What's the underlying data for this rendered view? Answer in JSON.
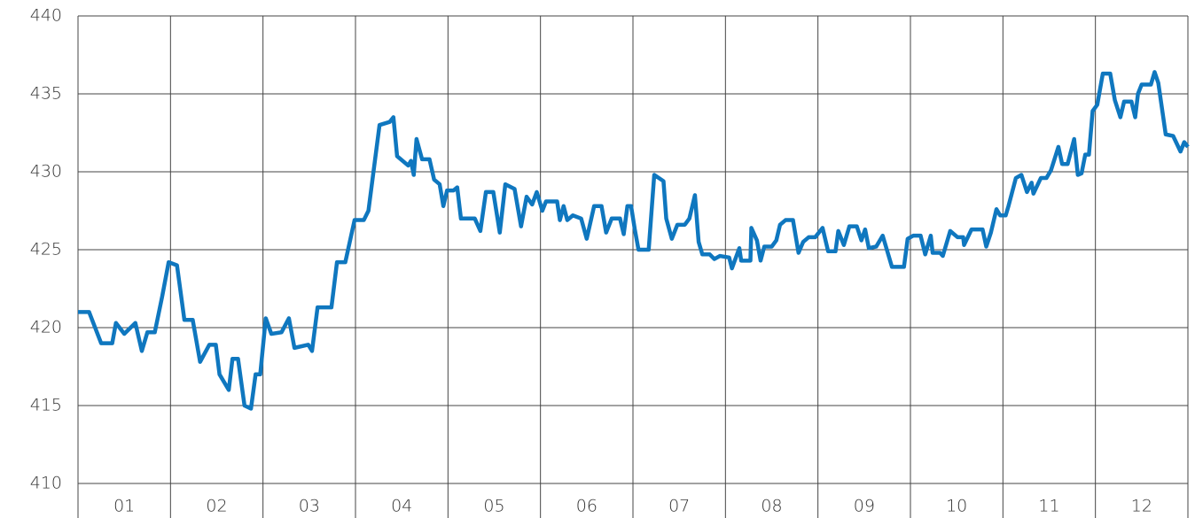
{
  "chart_data": {
    "type": "line",
    "xlim": [
      0,
      12
    ],
    "xticks": [
      {
        "value": 0.5,
        "label": "01"
      },
      {
        "value": 1.5,
        "label": "02"
      },
      {
        "value": 2.5,
        "label": "03"
      },
      {
        "value": 3.5,
        "label": "04"
      },
      {
        "value": 4.5,
        "label": "05"
      },
      {
        "value": 5.5,
        "label": "06"
      },
      {
        "value": 6.5,
        "label": "07"
      },
      {
        "value": 7.5,
        "label": "08"
      },
      {
        "value": 8.5,
        "label": "09"
      },
      {
        "value": 9.5,
        "label": "10"
      },
      {
        "value": 10.5,
        "label": "11"
      },
      {
        "value": 11.5,
        "label": "12"
      }
    ],
    "ylim": [
      410,
      440
    ],
    "yticks": [
      410,
      415,
      420,
      425,
      430,
      435,
      440
    ],
    "grid": true,
    "series": [
      {
        "color": "#0f77bf",
        "x": [
          0,
          0.12,
          0.25,
          0.37,
          0.41,
          0.5,
          0.62,
          0.69,
          0.75,
          0.83,
          0.91,
          0.98,
          1.07,
          1.15,
          1.24,
          1.32,
          1.42,
          1.49,
          1.53,
          1.63,
          1.67,
          1.73,
          1.8,
          1.87,
          1.92,
          1.97,
          2.03,
          2.09,
          2.2,
          2.28,
          2.34,
          2.49,
          2.53,
          2.59,
          2.74,
          2.8,
          2.89,
          2.99,
          3.09,
          3.14,
          3.26,
          3.37,
          3.41,
          3.45,
          3.57,
          3.6,
          3.63,
          3.66,
          3.72,
          3.8,
          3.85,
          3.91,
          3.95,
          3.99,
          4.06,
          4.1,
          4.14,
          4.29,
          4.35,
          4.41,
          4.49,
          4.56,
          4.62,
          4.72,
          4.79,
          4.85,
          4.91,
          4.96,
          5.02,
          5.06,
          5.18,
          5.21,
          5.25,
          5.29,
          5.35,
          5.44,
          5.5,
          5.58,
          5.66,
          5.71,
          5.77,
          5.86,
          5.9,
          5.94,
          5.98,
          6.02,
          6.06,
          6.17,
          6.23,
          6.33,
          6.36,
          6.42,
          6.48,
          6.56,
          6.61,
          6.67,
          6.71,
          6.75,
          6.83,
          6.88,
          6.94,
          7.04,
          7.07,
          7.15,
          7.17,
          7.27,
          7.28,
          7.34,
          7.38,
          7.42,
          7.5,
          7.55,
          7.59,
          7.65,
          7.73,
          7.79,
          7.84,
          7.9,
          7.97,
          8.05,
          8.11,
          8.19,
          8.22,
          8.28,
          8.34,
          8.42,
          8.47,
          8.51,
          8.55,
          8.63,
          8.7,
          8.8,
          8.93,
          8.97,
          9.03,
          9.11,
          9.16,
          9.22,
          9.24,
          9.32,
          9.35,
          9.43,
          9.51,
          9.57,
          9.58,
          9.66,
          9.78,
          9.82,
          9.87,
          9.93,
          9.97,
          10.03,
          10.06,
          10.14,
          10.2,
          10.26,
          10.31,
          10.33,
          10.41,
          10.47,
          10.52,
          10.6,
          10.64,
          10.7,
          10.77,
          10.81,
          10.85,
          10.89,
          10.93,
          10.97,
          11.02,
          11.08,
          11.16,
          11.21,
          11.27,
          11.31,
          11.39,
          11.43,
          11.46,
          11.5,
          11.6,
          11.64,
          11.68,
          11.76,
          11.84,
          11.92,
          11.96,
          12
        ],
        "values": [
          421,
          421,
          419,
          419,
          420.3,
          419.6,
          420.3,
          418.5,
          419.7,
          419.7,
          422,
          424.2,
          424,
          420.5,
          420.5,
          417.8,
          418.9,
          418.9,
          417,
          416,
          418,
          418,
          415,
          414.8,
          417,
          417,
          420.6,
          419.6,
          419.7,
          420.6,
          418.7,
          418.9,
          418.5,
          421.3,
          421.3,
          424.2,
          424.2,
          426.9,
          426.9,
          427.5,
          433,
          433.2,
          433.5,
          431,
          430.4,
          430.7,
          429.8,
          432.1,
          430.8,
          430.8,
          429.5,
          429.2,
          427.8,
          428.8,
          428.8,
          429,
          427,
          427,
          426.2,
          428.7,
          428.7,
          426.1,
          429.2,
          428.9,
          426.5,
          428.4,
          427.9,
          428.7,
          427.5,
          428.1,
          428.1,
          426.9,
          427.8,
          426.9,
          427.2,
          427,
          425.7,
          427.8,
          427.8,
          426.1,
          427,
          427,
          426,
          427.8,
          427.8,
          426.3,
          425,
          425,
          429.8,
          429.4,
          427,
          425.7,
          426.6,
          426.6,
          427,
          428.5,
          425.5,
          424.7,
          424.7,
          424.4,
          424.6,
          424.5,
          423.8,
          425.1,
          424.3,
          424.3,
          426.4,
          425.6,
          424.3,
          425.2,
          425.2,
          425.6,
          426.6,
          426.9,
          426.9,
          424.8,
          425.5,
          425.8,
          425.8,
          426.4,
          424.9,
          424.9,
          426.2,
          425.3,
          426.5,
          426.5,
          425.6,
          426.3,
          425.1,
          425.2,
          425.9,
          423.9,
          423.9,
          425.7,
          425.9,
          425.9,
          424.7,
          425.9,
          424.8,
          424.8,
          424.6,
          426.2,
          425.8,
          425.8,
          425.3,
          426.3,
          426.3,
          425.2,
          426.1,
          427.6,
          427.2,
          427.2,
          427.8,
          429.6,
          429.8,
          428.7,
          429.3,
          428.6,
          429.6,
          429.6,
          430.1,
          431.6,
          430.5,
          430.5,
          432.1,
          429.8,
          429.9,
          431.1,
          431.1,
          433.9,
          434.3,
          436.3,
          436.3,
          434.6,
          433.5,
          434.5,
          434.5,
          433.5,
          435,
          435.6,
          435.6,
          436.4,
          435.7,
          432.4,
          432.3,
          431.3,
          431.9,
          431.6
        ]
      }
    ]
  }
}
